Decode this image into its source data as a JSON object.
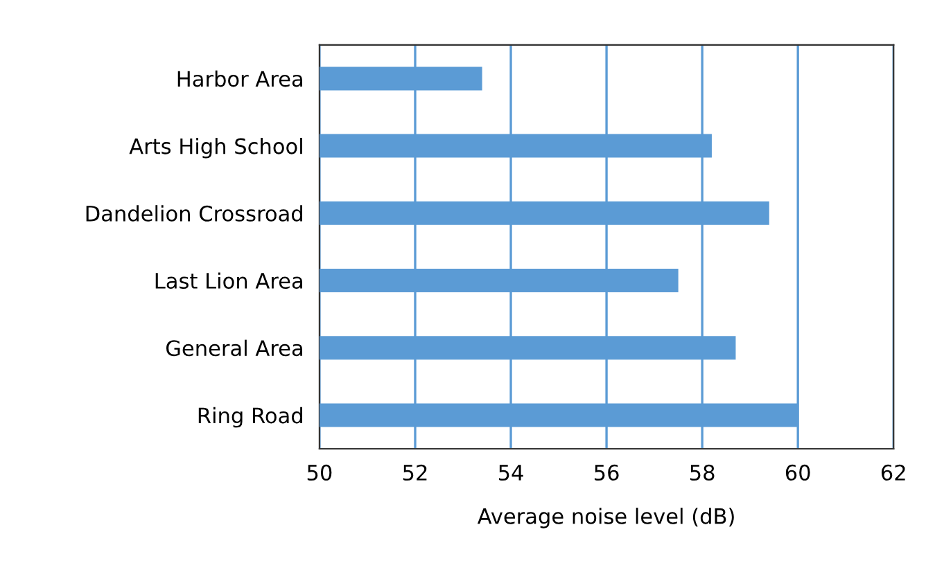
{
  "chart_data": {
    "type": "bar",
    "orientation": "horizontal",
    "xlabel": "Average noise level (dB)",
    "categories": [
      "Harbor Area",
      "Arts High School",
      "Dandelion Crossroad",
      "Last Lion Area",
      "General Area",
      "Ring Road"
    ],
    "values": [
      53.4,
      58.2,
      59.4,
      57.5,
      58.7,
      60.0
    ],
    "color": "#5b9bd5",
    "xlim": [
      50,
      62
    ],
    "xticks": [
      50,
      52,
      54,
      56,
      58,
      60,
      62
    ],
    "grid": "x"
  }
}
